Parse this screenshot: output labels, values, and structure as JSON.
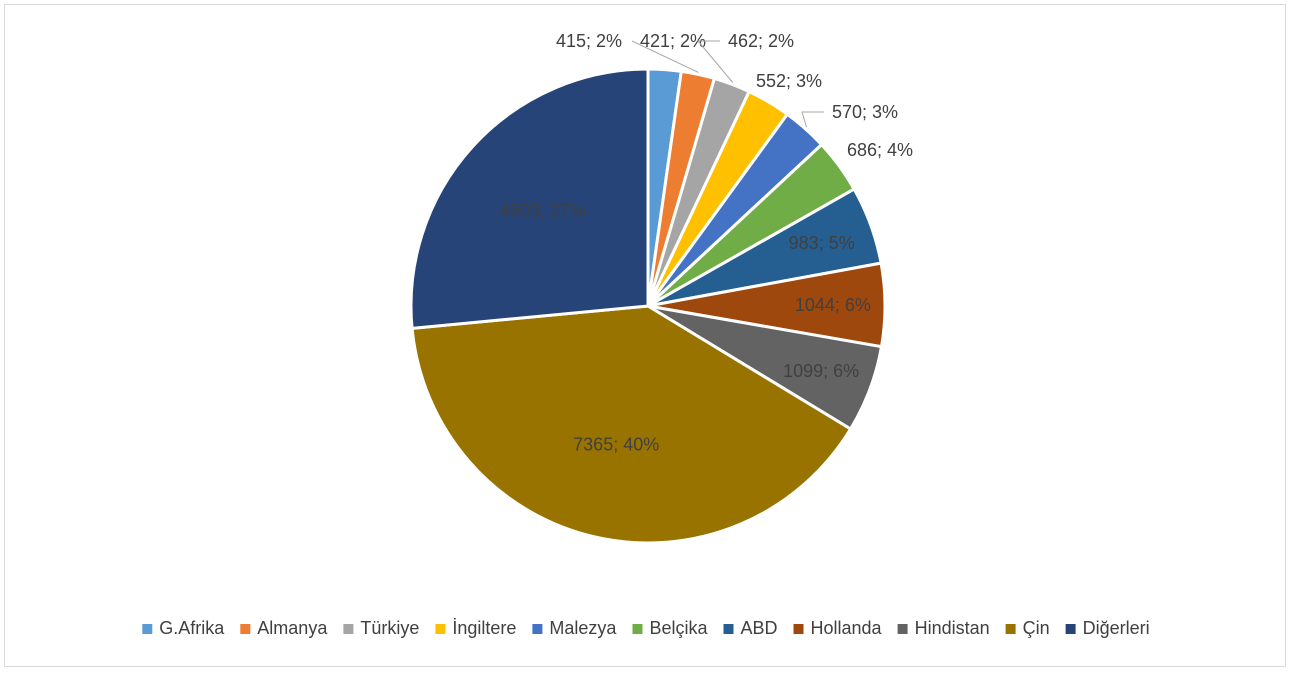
{
  "chart_data": {
    "type": "pie",
    "title": "",
    "legend_position": "bottom",
    "slices": [
      {
        "label": "G.Afrika",
        "value": 415,
        "percent": "2%",
        "color": "#5B9BD5"
      },
      {
        "label": "Almanya",
        "value": 421,
        "percent": "2%",
        "color": "#ED7D31"
      },
      {
        "label": "Türkiye",
        "value": 462,
        "percent": "2%",
        "color": "#A5A5A5"
      },
      {
        "label": "İngiltere",
        "value": 552,
        "percent": "3%",
        "color": "#FFC000"
      },
      {
        "label": "Malezya",
        "value": 570,
        "percent": "3%",
        "color": "#4472C4"
      },
      {
        "label": "Belçika",
        "value": 686,
        "percent": "4%",
        "color": "#70AD47"
      },
      {
        "label": "ABD",
        "value": 983,
        "percent": "5%",
        "color": "#255E91"
      },
      {
        "label": "Hollanda",
        "value": 1044,
        "percent": "6%",
        "color": "#9E480E"
      },
      {
        "label": "Hindistan",
        "value": 1099,
        "percent": "6%",
        "color": "#636363"
      },
      {
        "label": "Çin",
        "value": 7365,
        "percent": "40%",
        "color": "#997300"
      },
      {
        "label": "Diğerleri",
        "value": 4903,
        "percent": "27%",
        "color": "#264478"
      }
    ]
  }
}
